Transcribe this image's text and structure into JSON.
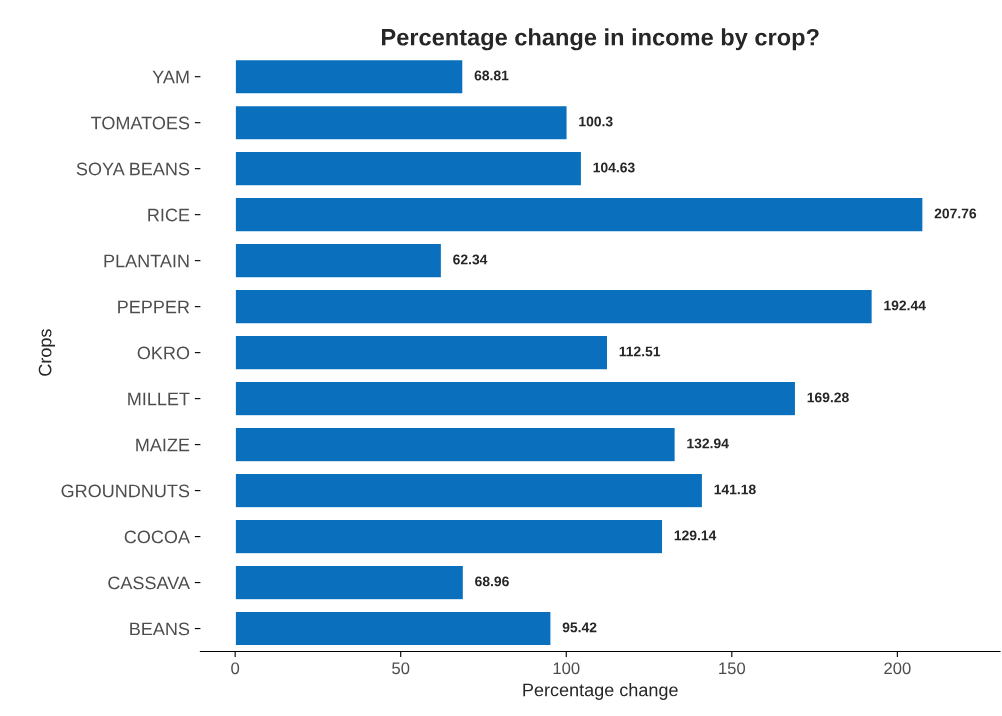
{
  "chart_data": {
    "type": "bar",
    "orientation": "horizontal",
    "title": "Percentage change in income by crop?",
    "xlabel": "Percentage change",
    "ylabel": "Crops",
    "categories": [
      "YAM",
      "TOMATOES",
      "SOYA BEANS",
      "RICE",
      "PLANTAIN",
      "PEPPER",
      "OKRO",
      "MILLET",
      "MAIZE",
      "GROUNDNUTS",
      "COCOA",
      "CASSAVA",
      "BEANS"
    ],
    "values": [
      68.81,
      100.3,
      104.63,
      207.76,
      62.34,
      192.44,
      112.51,
      169.28,
      132.94,
      141.18,
      129.14,
      68.96,
      95.42
    ],
    "color": "#0a70bd",
    "xlim": [
      -10.5,
      231
    ],
    "xticks": [
      0,
      50,
      100,
      150,
      200
    ],
    "data_labels": true,
    "grid": false,
    "legend": false
  }
}
